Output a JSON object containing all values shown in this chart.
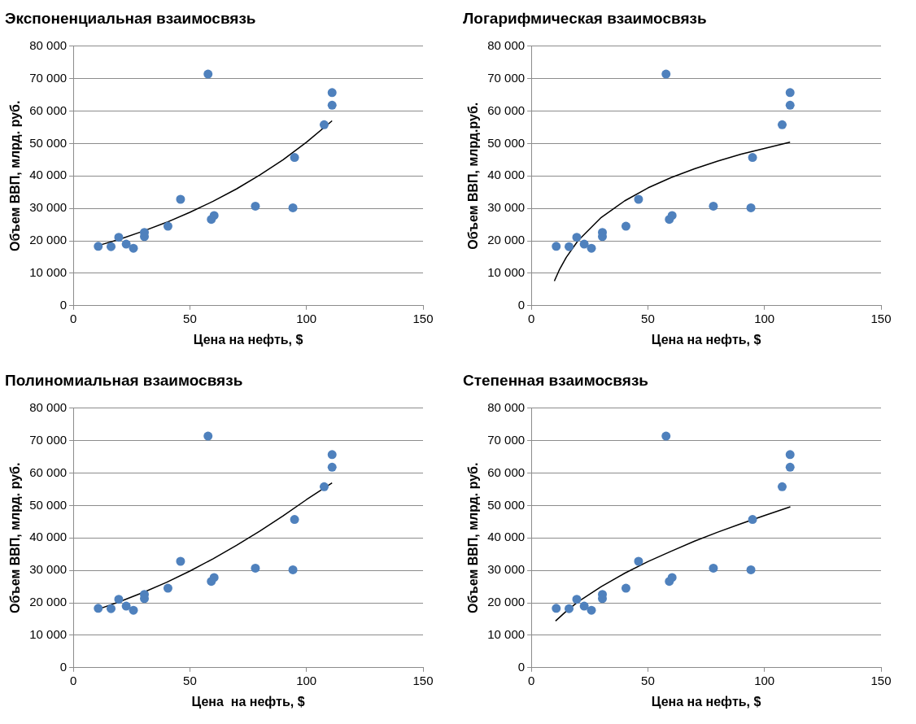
{
  "chart_data": [
    {
      "type": "scatter",
      "title": "Экспоненциальная взаимосвязь",
      "xlabel": "Цена на нефть, $",
      "ylabel": "Объем ВВП, млрд. руб.",
      "xlim": [
        0,
        150
      ],
      "xticks": [
        0,
        50,
        100,
        150
      ],
      "ylim": [
        0,
        80000
      ],
      "yticks": [
        {
          "value": 0,
          "label": "0"
        },
        {
          "value": 10000,
          "label": "10 000"
        },
        {
          "value": 20000,
          "label": "20 000"
        },
        {
          "value": 30000,
          "label": "30 000"
        },
        {
          "value": 40000,
          "label": "40 000"
        },
        {
          "value": 50000,
          "label": "50 000"
        },
        {
          "value": 60000,
          "label": "60 000"
        },
        {
          "value": 70000,
          "label": "70 000"
        },
        {
          "value": 80000,
          "label": "80 000"
        }
      ],
      "grid": "y",
      "legend": false,
      "x": [
        10.7,
        16.2,
        19.5,
        22.7,
        25.8,
        30.5,
        30.5,
        40.6,
        46,
        57.8,
        59.2,
        60.4,
        78.1,
        94.9,
        94.2,
        107.6,
        111,
        111
      ],
      "series": [
        {
          "color": "#4f81bd",
          "marker": "circle",
          "values": [
            18300,
            18200,
            21100,
            19000,
            17700,
            22600,
            21300,
            24500,
            32800,
            71400,
            26600,
            27800,
            30700,
            45700,
            30200,
            55800,
            61800,
            65700
          ]
        },
        {
          "type": "line",
          "color": "#000000",
          "marker": "none",
          "x": [
            11,
            20,
            30,
            40,
            50,
            60,
            70,
            80,
            90,
            100,
            111
          ],
          "values": [
            18600,
            20500,
            23000,
            25700,
            28800,
            32200,
            36000,
            40300,
            45000,
            50400,
            57000
          ]
        }
      ]
    },
    {
      "type": "scatter",
      "title": "Логарифмическая взаимосвязь",
      "xlabel": "Цена на нефть, $",
      "ylabel": "Объем ВВП, млрд.руб.",
      "xlim": [
        0,
        150
      ],
      "xticks": [
        0,
        50,
        100,
        150
      ],
      "ylim": [
        0,
        80000
      ],
      "yticks": [
        {
          "value": 0,
          "label": "0"
        },
        {
          "value": 10000,
          "label": "10 000"
        },
        {
          "value": 20000,
          "label": "20 000"
        },
        {
          "value": 30000,
          "label": "30 000"
        },
        {
          "value": 40000,
          "label": "40 000"
        },
        {
          "value": 50000,
          "label": "50 000"
        },
        {
          "value": 60000,
          "label": "60 000"
        },
        {
          "value": 70000,
          "label": "70 000"
        },
        {
          "value": 80000,
          "label": "80 000"
        }
      ],
      "grid": "y",
      "legend": false,
      "x": [
        10.7,
        16.2,
        19.5,
        22.7,
        25.8,
        30.5,
        30.5,
        40.6,
        46,
        57.8,
        59.2,
        60.4,
        78.1,
        94.9,
        94.2,
        107.6,
        111,
        111
      ],
      "series": [
        {
          "color": "#4f81bd",
          "marker": "circle",
          "values": [
            18300,
            18200,
            21100,
            19000,
            17700,
            22600,
            21300,
            24500,
            32800,
            71400,
            26600,
            27800,
            30700,
            45700,
            30200,
            55800,
            61800,
            65700
          ]
        },
        {
          "type": "line",
          "color": "#000000",
          "marker": "none",
          "x": [
            9.9,
            12,
            15,
            20,
            30,
            40,
            50,
            60,
            70,
            80,
            90,
            100,
            111
          ],
          "values": [
            7600,
            11000,
            14900,
            20000,
            27200,
            32300,
            36300,
            39500,
            42200,
            44600,
            46700,
            48500,
            50400
          ]
        }
      ]
    },
    {
      "type": "scatter",
      "title": "Полиномиальная взаимосвязь",
      "xlabel": "Цена  на нефть, $",
      "ylabel": "Объем ВВП, млрд. руб.",
      "xlim": [
        0,
        150
      ],
      "xticks": [
        0,
        50,
        100,
        150
      ],
      "ylim": [
        0,
        80000
      ],
      "yticks": [
        {
          "value": 0,
          "label": "0"
        },
        {
          "value": 10000,
          "label": "10 000"
        },
        {
          "value": 20000,
          "label": "20 000"
        },
        {
          "value": 30000,
          "label": "30 000"
        },
        {
          "value": 40000,
          "label": "40 000"
        },
        {
          "value": 50000,
          "label": "50 000"
        },
        {
          "value": 60000,
          "label": "60 000"
        },
        {
          "value": 70000,
          "label": "70 000"
        },
        {
          "value": 80000,
          "label": "80 000"
        }
      ],
      "grid": "y",
      "legend": false,
      "x": [
        10.7,
        16.2,
        19.5,
        22.7,
        25.8,
        30.5,
        30.5,
        40.6,
        46,
        57.8,
        59.2,
        60.4,
        78.1,
        94.9,
        94.2,
        107.6,
        111,
        111
      ],
      "series": [
        {
          "color": "#4f81bd",
          "marker": "circle",
          "values": [
            18300,
            18200,
            21100,
            19000,
            17700,
            22600,
            21300,
            24500,
            32800,
            71400,
            26600,
            27800,
            30700,
            45700,
            30200,
            55800,
            61800,
            65700
          ]
        },
        {
          "type": "line",
          "color": "#000000",
          "marker": "none",
          "x": [
            11,
            20,
            30,
            40,
            50,
            60,
            70,
            80,
            90,
            100,
            111
          ],
          "values": [
            18100,
            20400,
            23200,
            26300,
            29800,
            33600,
            37700,
            42100,
            46800,
            51800,
            57000
          ]
        }
      ]
    },
    {
      "type": "scatter",
      "title": "Степенная взаимосвязь",
      "xlabel": "Цена на нефть, $",
      "ylabel": "Объем ВВП, млрд. руб.",
      "xlim": [
        0,
        150
      ],
      "xticks": [
        0,
        50,
        100,
        150
      ],
      "ylim": [
        0,
        80000
      ],
      "yticks": [
        {
          "value": 0,
          "label": "0"
        },
        {
          "value": 10000,
          "label": "10 000"
        },
        {
          "value": 20000,
          "label": "20 000"
        },
        {
          "value": 30000,
          "label": "30 000"
        },
        {
          "value": 40000,
          "label": "40 000"
        },
        {
          "value": 50000,
          "label": "50 000"
        },
        {
          "value": 60000,
          "label": "60 000"
        },
        {
          "value": 70000,
          "label": "70 000"
        },
        {
          "value": 80000,
          "label": "80 000"
        }
      ],
      "grid": "y",
      "legend": false,
      "x": [
        10.7,
        16.2,
        19.5,
        22.7,
        25.8,
        30.5,
        30.5,
        40.6,
        46,
        57.8,
        59.2,
        60.4,
        78.1,
        94.9,
        94.2,
        107.6,
        111,
        111
      ],
      "series": [
        {
          "color": "#4f81bd",
          "marker": "circle",
          "values": [
            18300,
            18200,
            21100,
            19000,
            17700,
            22600,
            21300,
            24500,
            32800,
            71400,
            26600,
            27800,
            30700,
            45700,
            30200,
            55800,
            61800,
            65700
          ]
        },
        {
          "type": "line",
          "color": "#000000",
          "marker": "none",
          "x": [
            10.4,
            15,
            20,
            30,
            40,
            50,
            60,
            70,
            80,
            90,
            100,
            111.1
          ],
          "values": [
            14400,
            17400,
            20300,
            25000,
            29100,
            32700,
            35900,
            39000,
            41800,
            44400,
            46900,
            49600
          ]
        }
      ]
    }
  ]
}
